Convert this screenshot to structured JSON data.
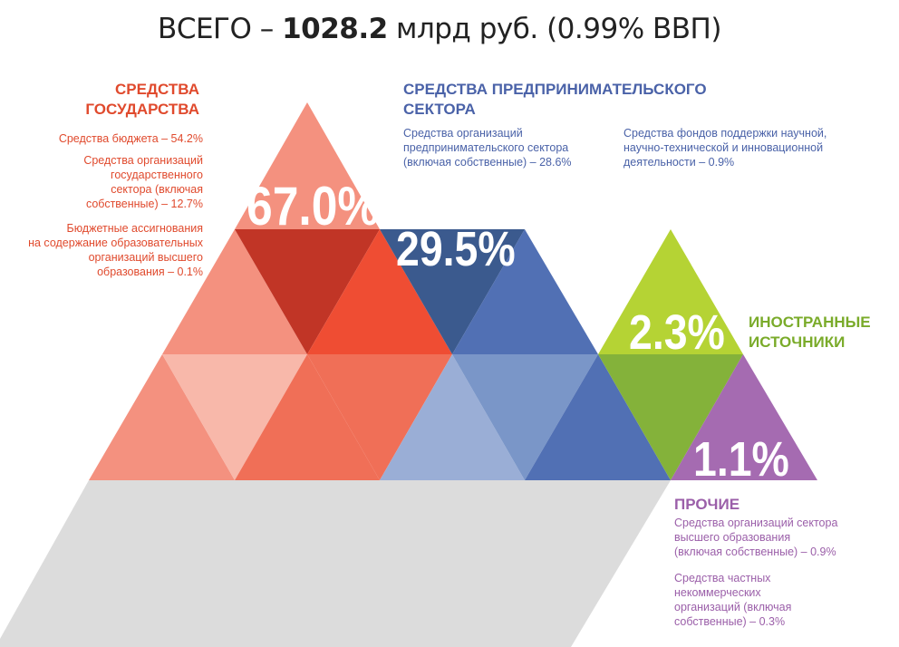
{
  "title": {
    "prefix": "ВСЕГО – ",
    "value": "1028.2",
    "suffix": " млрд руб. (0.99% ВВП)"
  },
  "groups": {
    "state": {
      "heading1": "СРЕДСТВА",
      "heading2": "ГОСУДАРСТВА",
      "percent": "67.0%",
      "items": [
        [
          "Средства бюджета – 54.2%"
        ],
        [
          "Средства организаций",
          "государственного",
          "сектора (включая",
          "собственные) – 12.7%"
        ],
        [
          "Бюджетные ассигнования",
          "на содержание образовательных",
          "организаций высшего",
          "образования – 0.1%"
        ]
      ]
    },
    "business": {
      "heading1": "СРЕДСТВА ПРЕДПРИНИМАТЕЛЬСКОГО",
      "heading2": "СЕКТОРА",
      "percent": "29.5%",
      "items": [
        [
          "Средства организаций",
          "предпринимательского сектора",
          "(включая собственные) – 28.6%"
        ],
        [
          "Средства фондов поддержки научной,",
          "научно-технической и инновационной",
          "деятельности – 0.9%"
        ]
      ]
    },
    "foreign": {
      "heading1": "ИНОСТРАННЫЕ",
      "heading2": "ИСТОЧНИКИ",
      "percent": "2.3%"
    },
    "other": {
      "heading": "ПРОЧИЕ",
      "percent": "1.1%",
      "items": [
        [
          "Средства организаций сектора",
          "высшего образования",
          "(включая собственные) – 0.9%"
        ],
        [
          "Средства частных",
          "некоммерческих",
          "организаций (включая",
          "собственные) – 0.3%"
        ]
      ]
    }
  },
  "colors": {
    "state_light": "#f4917f",
    "state_lighter": "#f8b8aa",
    "state_mid": "#f06f57",
    "state_bright": "#ef4d33",
    "state_dark": "#c13526",
    "business_dark": "#3b5a8e",
    "business_mid": "#5170b4",
    "business_light": "#7a96c8",
    "business_lighter": "#9aaed6",
    "foreign_light": "#b5d334",
    "foreign_dark": "#84b23a",
    "other": "#a56bb1",
    "shadow": "#dcdcdc"
  }
}
